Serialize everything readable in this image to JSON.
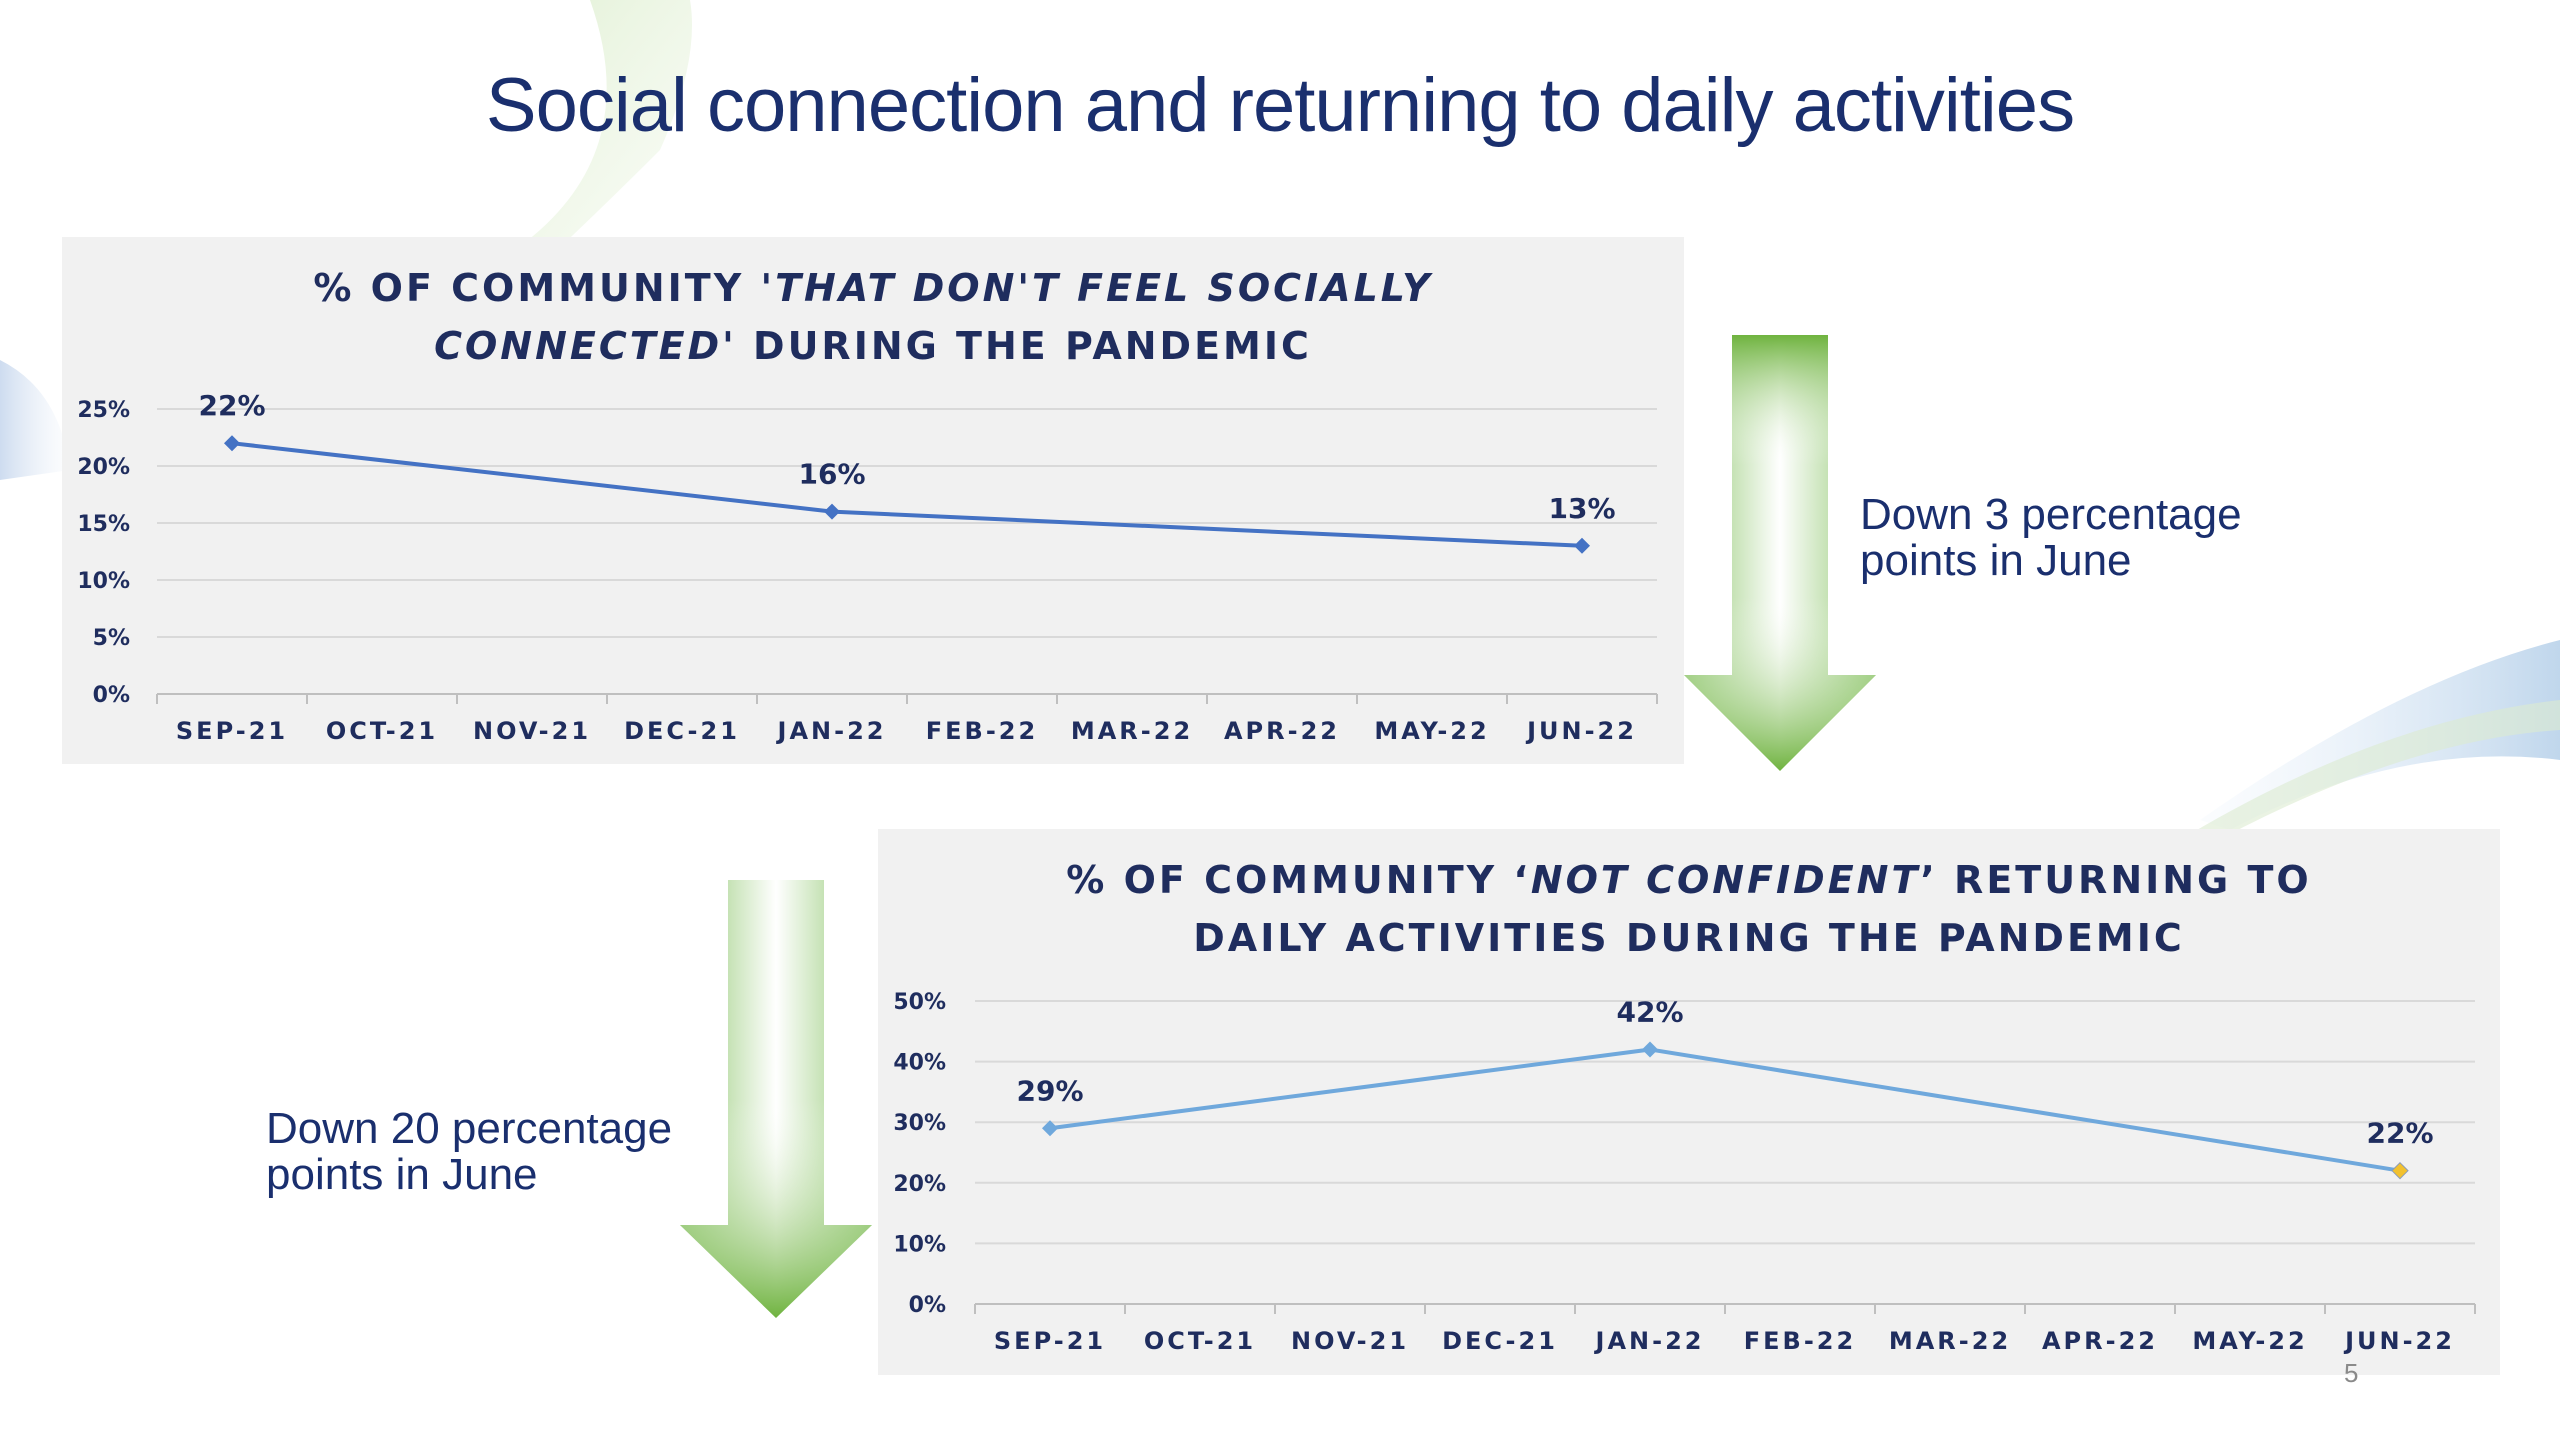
{
  "slide": {
    "title": "Social connection and returning to daily activities",
    "page_number": "5"
  },
  "notes": {
    "chart1_note_line1": "Down 3 percentage",
    "chart1_note_line2": "points in June",
    "chart2_note_line1": "Down 20 percentage",
    "chart2_note_line2": "points in June"
  },
  "colors": {
    "title": "#1a2f6e",
    "chart1_line": "#4472c4",
    "chart2_line": "#6fa8dc",
    "highlight_marker": "#f2c12e",
    "arrow_green": "#6fb33f",
    "panel_bg": "#f1f1f1"
  },
  "chart_data": [
    {
      "type": "line",
      "title_parts": [
        "% OF COMMUNITY ",
        "'THAT DON'T FEEL SOCIALLY",
        "CONNECTED",
        "' DURING THE PANDEMIC"
      ],
      "categories": [
        "SEP-21",
        "OCT-21",
        "NOV-21",
        "DEC-21",
        "JAN-22",
        "FEB-22",
        "MAR-22",
        "APR-22",
        "MAY-22",
        "JUN-22"
      ],
      "series": [
        {
          "points": [
            {
              "x": "SEP-21",
              "y": 22,
              "label": "22%"
            },
            {
              "x": "JAN-22",
              "y": 16,
              "label": "16%"
            },
            {
              "x": "JUN-22",
              "y": 13,
              "label": "13%"
            }
          ]
        }
      ],
      "y_ticks": [
        "0%",
        "5%",
        "10%",
        "15%",
        "20%",
        "25%"
      ],
      "ylim": [
        0,
        25
      ],
      "xlabel": "",
      "ylabel": "",
      "grid": true
    },
    {
      "type": "line",
      "title_parts": [
        "% OF COMMUNITY ‘",
        "NOT CONFIDENT",
        "’ RETURNING TO",
        "DAILY ACTIVITIES  DURING THE  PANDEMIC"
      ],
      "categories": [
        "SEP-21",
        "OCT-21",
        "NOV-21",
        "DEC-21",
        "JAN-22",
        "FEB-22",
        "MAR-22",
        "APR-22",
        "MAY-22",
        "JUN-22"
      ],
      "series": [
        {
          "points": [
            {
              "x": "SEP-21",
              "y": 29,
              "label": "29%"
            },
            {
              "x": "JAN-22",
              "y": 42,
              "label": "42%"
            },
            {
              "x": "JUN-22",
              "y": 22,
              "label": "22%"
            }
          ]
        }
      ],
      "y_ticks": [
        "0%",
        "10%",
        "20%",
        "30%",
        "40%",
        "50%"
      ],
      "ylim": [
        0,
        50
      ],
      "xlabel": "",
      "ylabel": "",
      "grid": true
    }
  ]
}
